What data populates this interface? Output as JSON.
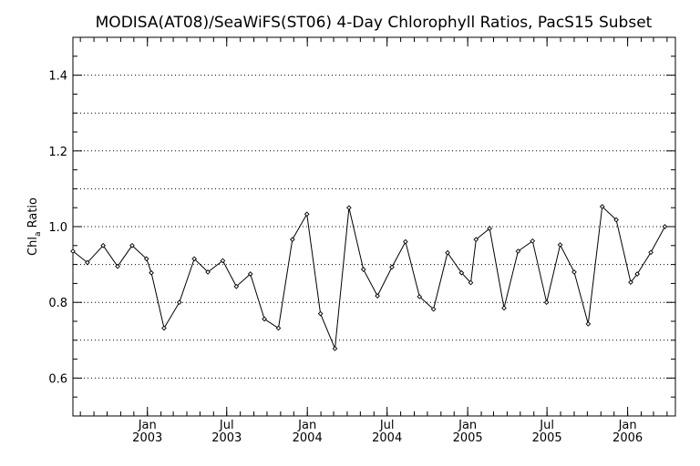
{
  "chart_data": {
    "type": "line",
    "title": "MODISA(AT08)/SeaWiFS(ST06) 4-Day Chlorophyll Ratios, PacS15 Subset",
    "xlabel": "",
    "ylabel_main": "Chl",
    "ylabel_sub": "a",
    "ylabel_rest": " Ratio",
    "ylim": [
      0.5,
      1.5
    ],
    "y_ticks": [
      0.6,
      0.8,
      1.0,
      1.2,
      1.4
    ],
    "y_tick_labels": [
      "0.6",
      "0.8",
      "1.0",
      "1.2",
      "1.4"
    ],
    "y_grid": [
      0.6,
      0.7,
      0.8,
      0.9,
      1.0,
      1.1,
      1.2,
      1.3,
      1.4
    ],
    "xlim": [
      "2002-07-15",
      "2006-04-20"
    ],
    "x_major_ticks": [
      "2003-01-01",
      "2003-07-01",
      "2004-01-01",
      "2004-07-01",
      "2005-01-01",
      "2005-07-01",
      "2006-01-01"
    ],
    "x_tick_month": [
      "Jan",
      "Jul",
      "Jan",
      "Jul",
      "Jan",
      "Jul",
      "Jan"
    ],
    "x_tick_year": [
      "2003",
      "2003",
      "2004",
      "2004",
      "2005",
      "2005",
      "2006"
    ],
    "grid": true,
    "line_color": "#000000",
    "marker": "diamond",
    "series": [
      {
        "x": [
          "2002-07-15",
          "2002-08-17",
          "2002-09-22",
          "2002-10-25",
          "2002-11-27",
          "2002-12-30",
          "2003-01-10",
          "2003-02-08",
          "2003-03-15",
          "2003-04-18",
          "2003-05-19",
          "2003-06-22",
          "2003-07-23",
          "2003-08-24",
          "2003-09-25",
          "2003-10-27",
          "2003-11-28",
          "2003-12-31",
          "2004-01-31",
          "2004-03-04",
          "2004-04-05",
          "2004-05-08",
          "2004-06-09",
          "2004-07-12",
          "2004-08-12",
          "2004-09-13",
          "2004-10-15",
          "2004-11-16",
          "2004-12-18",
          "2005-01-08",
          "2005-01-20",
          "2005-02-20",
          "2005-03-25",
          "2005-04-26",
          "2005-05-29",
          "2005-06-30",
          "2005-07-31",
          "2005-09-01",
          "2005-10-03",
          "2005-11-04",
          "2005-12-06",
          "2006-01-08",
          "2006-01-23",
          "2006-02-23",
          "2006-03-27"
        ],
        "y": [
          0.935,
          0.905,
          0.95,
          0.895,
          0.95,
          0.915,
          0.878,
          0.732,
          0.8,
          0.915,
          0.88,
          0.91,
          0.842,
          0.875,
          0.756,
          0.732,
          0.966,
          1.033,
          0.77,
          0.678,
          1.05,
          0.887,
          0.817,
          0.893,
          0.96,
          0.815,
          0.782,
          0.931,
          0.878,
          0.852,
          0.966,
          0.995,
          0.785,
          0.935,
          0.962,
          0.8,
          0.952,
          0.88,
          0.743,
          1.053,
          1.018,
          0.853,
          0.875,
          0.932,
          1.0
        ]
      }
    ]
  }
}
